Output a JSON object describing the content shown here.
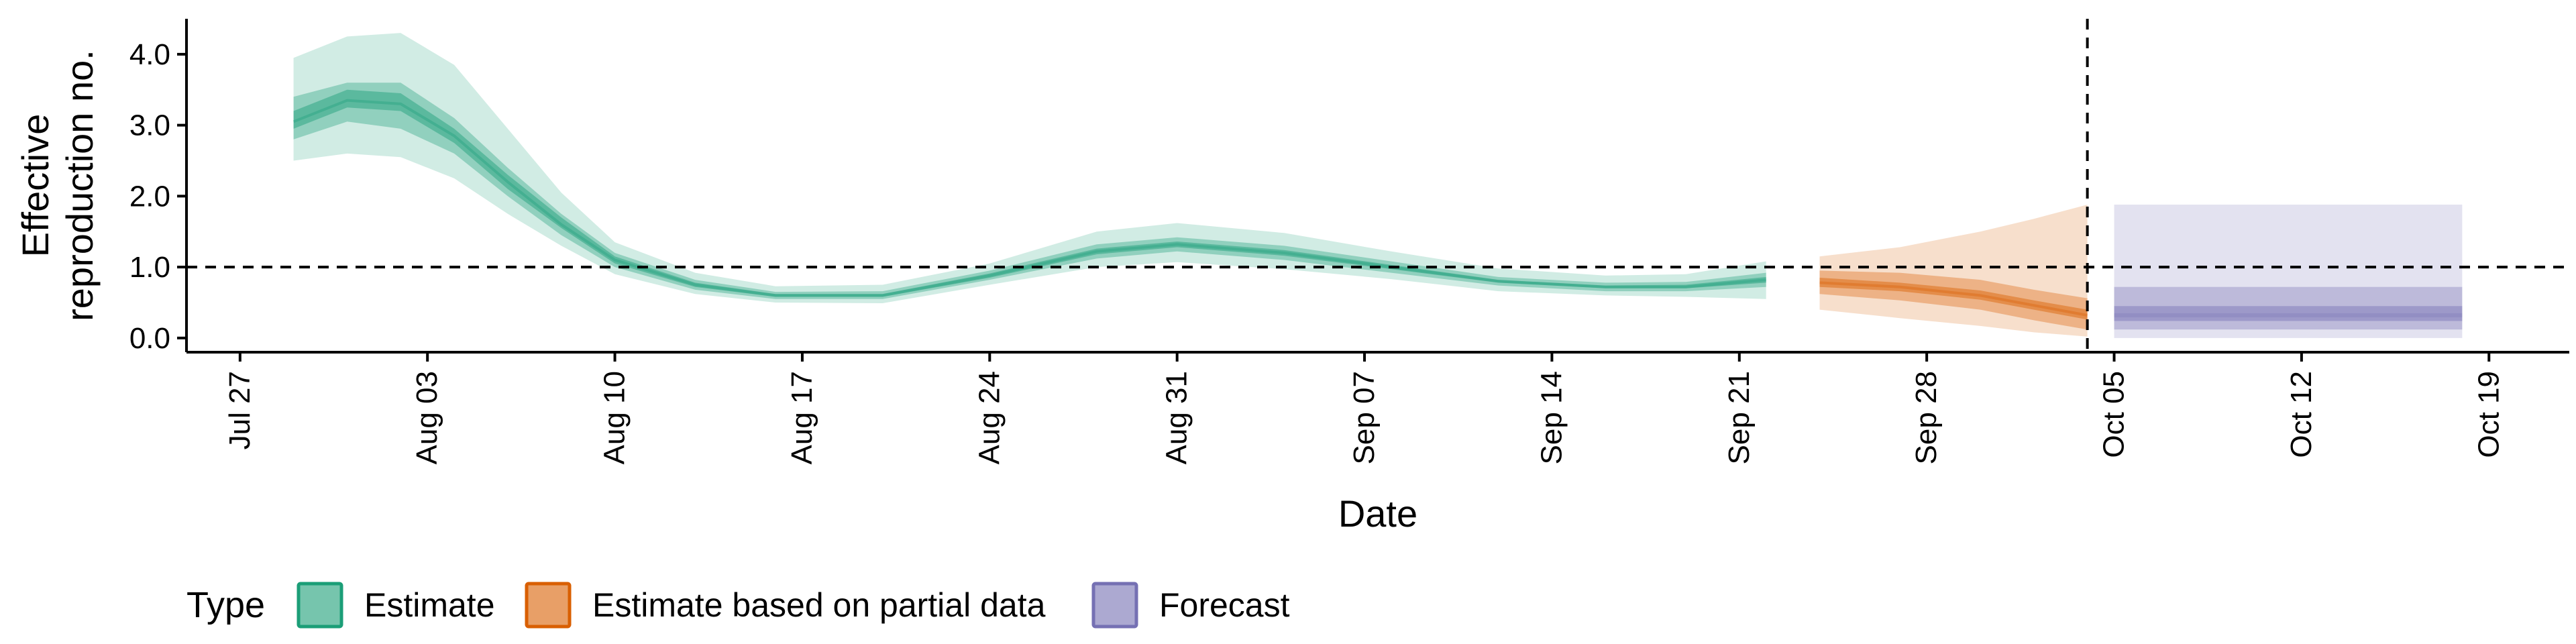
{
  "chart_data": {
    "type": "area",
    "xlabel": "Date",
    "ylabel": [
      "Effective",
      "reproduction no."
    ],
    "x_ticks": [
      "Jul 27",
      "Aug 03",
      "Aug 10",
      "Aug 17",
      "Aug 24",
      "Aug 31",
      "Sep 07",
      "Sep 14",
      "Sep 21",
      "Sep 28",
      "Oct 05",
      "Oct 12",
      "Oct 19"
    ],
    "x_range": [
      "2020-07-25",
      "2020-10-22"
    ],
    "y_ticks": [
      "0.0",
      "1.0",
      "2.0",
      "3.0",
      "4.0"
    ],
    "ylim": [
      -0.2,
      4.5
    ],
    "reference_lines": {
      "horizontal_y": 1.0,
      "vertical_x": "2020-10-04"
    },
    "colors": {
      "Estimate": "#1b9e77",
      "Estimate based on partial data": "#d95f02",
      "Forecast": "#7570b3"
    },
    "legend": {
      "title": "Type",
      "position": "bottom",
      "items": [
        "Estimate",
        "Estimate based on partial data",
        "Forecast"
      ]
    },
    "series": [
      {
        "name": "Estimate",
        "points": [
          {
            "x": "2020-07-29",
            "median": 3.05,
            "lower20": 2.95,
            "upper20": 3.2,
            "lower50": 2.8,
            "upper50": 3.4,
            "lower90": 2.5,
            "upper90": 3.95
          },
          {
            "x": "2020-07-31",
            "median": 3.35,
            "lower20": 3.25,
            "upper20": 3.5,
            "lower50": 3.05,
            "upper50": 3.6,
            "lower90": 2.6,
            "upper90": 4.25
          },
          {
            "x": "2020-08-02",
            "median": 3.3,
            "lower20": 3.2,
            "upper20": 3.45,
            "lower50": 2.95,
            "upper50": 3.6,
            "lower90": 2.55,
            "upper90": 4.3
          },
          {
            "x": "2020-08-04",
            "median": 2.85,
            "lower20": 2.75,
            "upper20": 2.95,
            "lower50": 2.6,
            "upper50": 3.1,
            "lower90": 2.25,
            "upper90": 3.85
          },
          {
            "x": "2020-08-06",
            "median": 2.2,
            "lower20": 2.1,
            "upper20": 2.3,
            "lower50": 2.0,
            "upper50": 2.4,
            "lower90": 1.75,
            "upper90": 2.95
          },
          {
            "x": "2020-08-08",
            "median": 1.6,
            "lower20": 1.55,
            "upper20": 1.7,
            "lower50": 1.45,
            "upper50": 1.75,
            "lower90": 1.3,
            "upper90": 2.05
          },
          {
            "x": "2020-08-10",
            "median": 1.1,
            "lower20": 1.05,
            "upper20": 1.15,
            "lower50": 1.0,
            "upper50": 1.2,
            "lower90": 0.9,
            "upper90": 1.35
          },
          {
            "x": "2020-08-13",
            "median": 0.75,
            "lower20": 0.72,
            "upper20": 0.78,
            "lower50": 0.68,
            "upper50": 0.82,
            "lower90": 0.62,
            "upper90": 0.92
          },
          {
            "x": "2020-08-16",
            "median": 0.6,
            "lower20": 0.58,
            "upper20": 0.62,
            "lower50": 0.55,
            "upper50": 0.65,
            "lower90": 0.5,
            "upper90": 0.73
          },
          {
            "x": "2020-08-20",
            "median": 0.6,
            "lower20": 0.58,
            "upper20": 0.62,
            "lower50": 0.55,
            "upper50": 0.66,
            "lower90": 0.49,
            "upper90": 0.75
          },
          {
            "x": "2020-08-24",
            "median": 0.88,
            "lower20": 0.85,
            "upper20": 0.91,
            "lower50": 0.82,
            "upper50": 0.95,
            "lower90": 0.75,
            "upper90": 1.05
          },
          {
            "x": "2020-08-28",
            "median": 1.22,
            "lower20": 1.18,
            "upper20": 1.26,
            "lower50": 1.12,
            "upper50": 1.32,
            "lower90": 1.0,
            "upper90": 1.5
          },
          {
            "x": "2020-08-31",
            "median": 1.32,
            "lower20": 1.28,
            "upper20": 1.36,
            "lower50": 1.22,
            "upper50": 1.42,
            "lower90": 1.07,
            "upper90": 1.62
          },
          {
            "x": "2020-09-04",
            "median": 1.2,
            "lower20": 1.16,
            "upper20": 1.24,
            "lower50": 1.1,
            "upper50": 1.3,
            "lower90": 0.97,
            "upper90": 1.48
          },
          {
            "x": "2020-09-08",
            "median": 1.0,
            "lower20": 0.97,
            "upper20": 1.03,
            "lower50": 0.92,
            "upper50": 1.08,
            "lower90": 0.83,
            "upper90": 1.22
          },
          {
            "x": "2020-09-12",
            "median": 0.8,
            "lower20": 0.78,
            "upper20": 0.82,
            "lower50": 0.74,
            "upper50": 0.86,
            "lower90": 0.66,
            "upper90": 0.98
          },
          {
            "x": "2020-09-16",
            "median": 0.72,
            "lower20": 0.7,
            "upper20": 0.74,
            "lower50": 0.66,
            "upper50": 0.78,
            "lower90": 0.6,
            "upper90": 0.88
          },
          {
            "x": "2020-09-19",
            "median": 0.72,
            "lower20": 0.7,
            "upper20": 0.75,
            "lower50": 0.66,
            "upper50": 0.79,
            "lower90": 0.58,
            "upper90": 0.9
          },
          {
            "x": "2020-09-22",
            "median": 0.82,
            "lower20": 0.78,
            "upper20": 0.86,
            "lower50": 0.72,
            "upper50": 0.92,
            "lower90": 0.55,
            "upper90": 1.08
          }
        ]
      },
      {
        "name": "Estimate based on partial data",
        "points": [
          {
            "x": "2020-09-24",
            "median": 0.78,
            "lower20": 0.72,
            "upper20": 0.85,
            "lower50": 0.62,
            "upper50": 0.95,
            "lower90": 0.4,
            "upper90": 1.15
          },
          {
            "x": "2020-09-27",
            "median": 0.72,
            "lower20": 0.66,
            "upper20": 0.78,
            "lower50": 0.53,
            "upper50": 0.92,
            "lower90": 0.28,
            "upper90": 1.28
          },
          {
            "x": "2020-09-30",
            "median": 0.6,
            "lower20": 0.54,
            "upper20": 0.67,
            "lower50": 0.4,
            "upper50": 0.82,
            "lower90": 0.17,
            "upper90": 1.5
          },
          {
            "x": "2020-10-02",
            "median": 0.46,
            "lower20": 0.4,
            "upper20": 0.53,
            "lower50": 0.25,
            "upper50": 0.68,
            "lower90": 0.08,
            "upper90": 1.68
          },
          {
            "x": "2020-10-04",
            "median": 0.32,
            "lower20": 0.26,
            "upper20": 0.4,
            "lower50": 0.12,
            "upper50": 0.56,
            "lower90": 0.02,
            "upper90": 1.88
          }
        ]
      },
      {
        "name": "Forecast",
        "points": [
          {
            "x": "2020-10-05",
            "median": 0.32,
            "lower20": 0.24,
            "upper20": 0.45,
            "lower50": 0.12,
            "upper50": 0.72,
            "lower90": 0.0,
            "upper90": 1.88
          },
          {
            "x": "2020-10-18",
            "median": 0.32,
            "lower20": 0.24,
            "upper20": 0.45,
            "lower50": 0.12,
            "upper50": 0.72,
            "lower90": 0.0,
            "upper90": 1.88
          }
        ]
      }
    ]
  }
}
